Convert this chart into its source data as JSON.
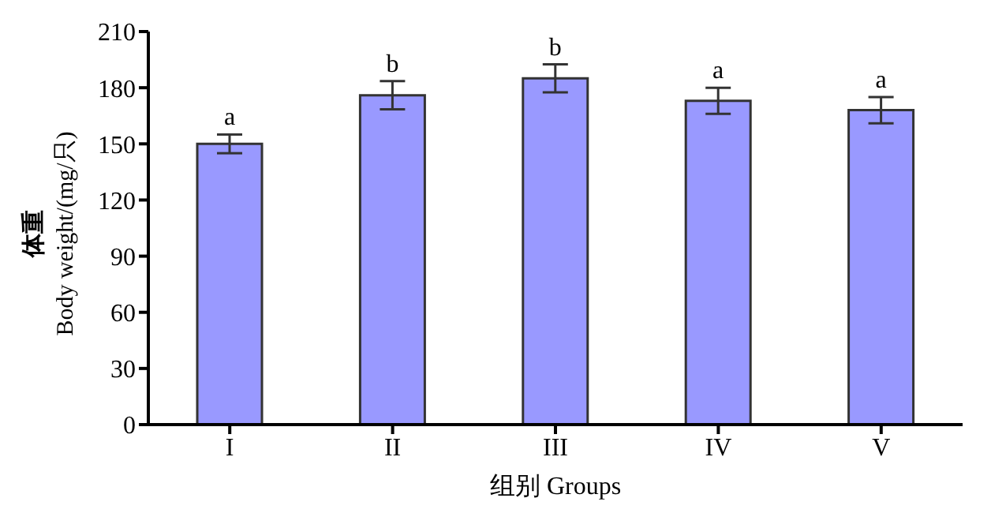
{
  "chart_data": {
    "type": "bar",
    "xlabel": "组别  Groups",
    "ylabel": "体重\nBody weight/(mg/只)",
    "categories": [
      "I",
      "II",
      "III",
      "IV",
      "V"
    ],
    "values": [
      150,
      176,
      185,
      173,
      168
    ],
    "errors": [
      5,
      7.5,
      7.5,
      7,
      7
    ],
    "color": "#9999ff",
    "ylim": [
      0,
      210
    ],
    "yticks": [
      0,
      30,
      60,
      90,
      120,
      150,
      180,
      210
    ],
    "grid": false,
    "annotations": [
      "a",
      "b",
      "b",
      "a",
      "a"
    ]
  }
}
